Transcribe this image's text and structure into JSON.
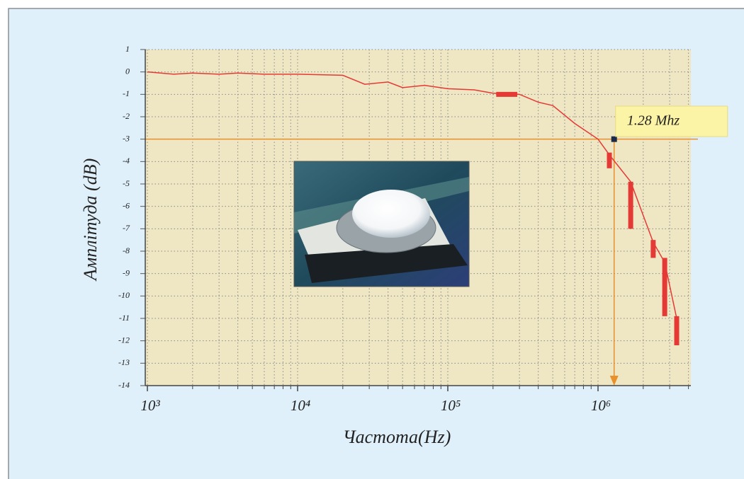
{
  "chart_data": {
    "type": "line",
    "y_label": "Амплітуда (dB)",
    "x_label": "Частота(Hz)",
    "log_x": true,
    "grid": true,
    "xlim": [
      1000,
      4150000
    ],
    "ylim": [
      -14,
      1
    ],
    "xticks": [
      {
        "value": 1000,
        "label": "10³"
      },
      {
        "value": 10000,
        "label": "10⁴"
      },
      {
        "value": 100000,
        "label": "10⁵"
      },
      {
        "value": 1000000,
        "label": "10⁶"
      }
    ],
    "minor_xticks": [
      2000,
      3000,
      4000,
      5000,
      6000,
      7000,
      8000,
      9000,
      20000,
      30000,
      40000,
      50000,
      60000,
      70000,
      80000,
      90000,
      200000,
      300000,
      400000,
      500000,
      600000,
      700000,
      800000,
      900000,
      2000000,
      3000000,
      4000000
    ],
    "yticks": [
      -14,
      -13,
      -12,
      -11,
      -10,
      -9,
      -8,
      -7,
      -6,
      -5,
      -4,
      -3,
      -2,
      -1,
      0,
      1
    ],
    "series": [
      {
        "color": "#e53935",
        "x": [
          1000,
          1500,
          2000,
          3000,
          4000,
          6000,
          10000,
          20000,
          28000,
          40000,
          50000,
          70000,
          100000,
          150000,
          200000,
          300000,
          400000,
          500000,
          700000,
          1000000,
          1190000,
          1650000,
          2330000,
          2780000,
          3340000
        ],
        "values": [
          0,
          -0.1,
          -0.05,
          -0.1,
          -0.05,
          -0.1,
          -0.1,
          -0.15,
          -0.55,
          -0.45,
          -0.7,
          -0.6,
          -0.75,
          -0.8,
          -0.95,
          -1.0,
          -1.35,
          -1.5,
          -2.3,
          -3.0,
          -3.7,
          -4.9,
          -7.6,
          -8.5,
          -11.0
        ]
      }
    ],
    "segments": [
      {
        "x1": 210000,
        "x2": 290000,
        "y1": -1,
        "y2": -1
      },
      {
        "x1": 1190000,
        "x2": 1190000,
        "y1": -3.6,
        "y2": -4.3
      },
      {
        "x1": 1650000,
        "x2": 1650000,
        "y1": -4.9,
        "y2": -7.0
      },
      {
        "x1": 2330000,
        "x2": 2330000,
        "y1": -7.5,
        "y2": -8.3
      },
      {
        "x1": 2780000,
        "x2": 2780000,
        "y1": -8.3,
        "y2": -10.9
      },
      {
        "x1": 3340000,
        "x2": 3340000,
        "y1": -10.9,
        "y2": -12.2
      }
    ],
    "cutoff": {
      "x": 1280000,
      "y": -3,
      "label": "1.28 Mhz"
    }
  }
}
